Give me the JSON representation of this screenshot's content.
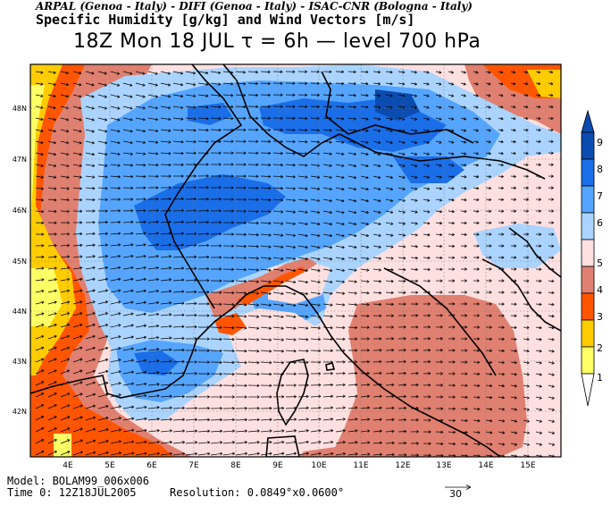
{
  "header": {
    "institutions": "ARPAL (Genoa - Italy)  -  DIFI (Genoa - Italy)  -  ISAC-CNR (Bologna - Italy)",
    "title": "Specific Humidity [g/kg] and Wind Vectors [m/s]",
    "subtitle": "18Z Mon 18 JUL  τ = 6h  —  level 700 hPa"
  },
  "axes": {
    "lat_labels": [
      "48N",
      "47N",
      "46N",
      "45N",
      "44N",
      "43N",
      "42N"
    ],
    "lon_labels": [
      "4E",
      "5E",
      "6E",
      "7E",
      "8E",
      "9E",
      "10E",
      "11E",
      "12E",
      "13E",
      "14E",
      "15E"
    ]
  },
  "colorbar": {
    "labels": [
      "1",
      "2",
      "3",
      "4",
      "5",
      "6",
      "7",
      "8",
      "9"
    ],
    "colors": {
      "c1": "#ffffff",
      "c2": "#ffff66",
      "c3": "#ffcc00",
      "c4": "#ff5500",
      "c5": "#e08070",
      "c6": "#ffe0e0",
      "c7": "#aad4ff",
      "c8": "#55a5ff",
      "c9": "#1a6ee8",
      "c10": "#0a4cb0"
    }
  },
  "wind_reference": {
    "value": "30"
  },
  "footer": {
    "model": "Model: BOLAM99_006x006",
    "time": "Time 0: 12Z18JUL2005",
    "resolution": "Resolution: 0.0849°x0.0600°"
  }
}
